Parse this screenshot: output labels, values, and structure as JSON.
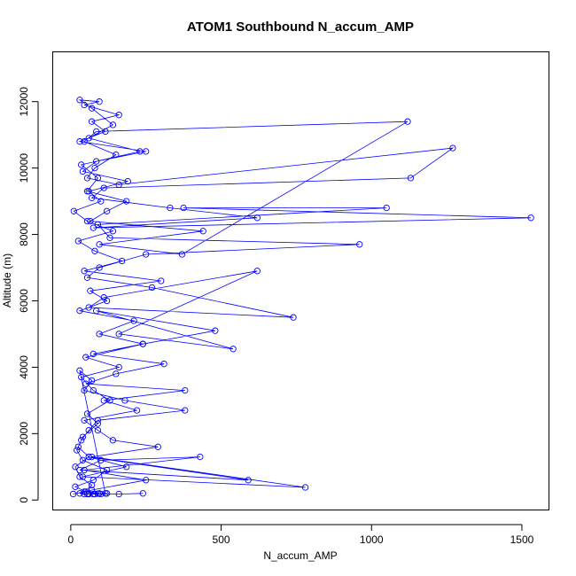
{
  "chart_data": {
    "type": "line",
    "title": "ATOM1 Southbound N_accum_AMP",
    "xlabel": "N_accum_AMP",
    "ylabel": "Altitude (m)",
    "xlim": [
      -60,
      1590
    ],
    "ylim": [
      -300,
      13500
    ],
    "xticks": [
      "0",
      "500",
      "1000",
      "1500"
    ],
    "yticks": [
      "0",
      "2000",
      "4000",
      "6000",
      "8000",
      "10000",
      "12000"
    ],
    "marker": "open-circle",
    "grid": false,
    "legend": "none",
    "color": "#0000ff",
    "series": [
      {
        "x": [
          8,
          45,
          70,
          30,
          15,
          60,
          25,
          40,
          90,
          55,
          130,
          75,
          35,
          160,
          50,
          240,
          95,
          210,
          30,
          120,
          65,
          300,
          45,
          170,
          80,
          25,
          140,
          55,
          10,
          100,
          60,
          190,
          40,
          85,
          250,
          30,
          115,
          70,
          160,
          45,
          95,
          30,
          70,
          140,
          60,
          230,
          35,
          90,
          55,
          185,
          120,
          65,
          440,
          95,
          370,
          1120,
          85,
          45,
          150,
          80,
          55,
          160,
          1270,
          1130,
          110,
          70,
          330,
          620,
          75,
          1530,
          375,
          1050,
          90,
          130,
          960,
          250,
          95,
          55,
          270,
          740,
          60,
          110,
          620,
          160,
          540,
          85,
          480,
          240,
          75,
          310,
          150,
          50,
          380,
          110,
          220,
          45,
          90,
          140,
          290,
          70,
          780,
          40,
          185,
          60,
          590,
          30,
          100,
          430,
          45,
          250,
          70,
          30,
          45,
          75,
          120,
          55,
          95,
          80,
          60,
          100,
          115,
          30,
          70,
          45,
          180,
          380,
          90,
          60,
          35,
          20,
          40,
          120,
          75,
          15,
          50,
          90,
          60,
          160,
          240
        ],
        "y": [
          180,
          250,
          450,
          700,
          1000,
          1300,
          1600,
          1900,
          2300,
          2600,
          3000,
          3300,
          3700,
          4000,
          4300,
          4700,
          5000,
          5400,
          5700,
          6000,
          6300,
          6600,
          6900,
          7200,
          7500,
          7800,
          8100,
          8400,
          8700,
          9000,
          9300,
          9600,
          9900,
          10200,
          10500,
          10800,
          11100,
          11400,
          11600,
          11900,
          12000,
          12050,
          11800,
          11300,
          10900,
          10500,
          10100,
          9700,
          9300,
          9000,
          8700,
          8400,
          8100,
          7700,
          7400,
          11400,
          11100,
          10800,
          10400,
          10000,
          9700,
          9500,
          10600,
          9700,
          9400,
          9100,
          8800,
          8500,
          8200,
          8500,
          8800,
          8800,
          8300,
          7900,
          7700,
          7400,
          7000,
          6700,
          6400,
          5500,
          5800,
          6100,
          6900,
          5000,
          4550,
          5700,
          5100,
          4700,
          4400,
          4100,
          3800,
          3500,
          3300,
          3000,
          2700,
          2400,
          2100,
          1800,
          1600,
          1300,
          380,
          700,
          1000,
          1300,
          600,
          900,
          1200,
          1300,
          900,
          600,
          300,
          200,
          180,
          180,
          200,
          180,
          200,
          180,
          190,
          180,
          200,
          3900,
          3600,
          3300,
          3000,
          2700,
          2400,
          2100,
          1800,
          1500,
          1200,
          900,
          600,
          400,
          250,
          190,
          180,
          180,
          200
        ]
      }
    ]
  }
}
